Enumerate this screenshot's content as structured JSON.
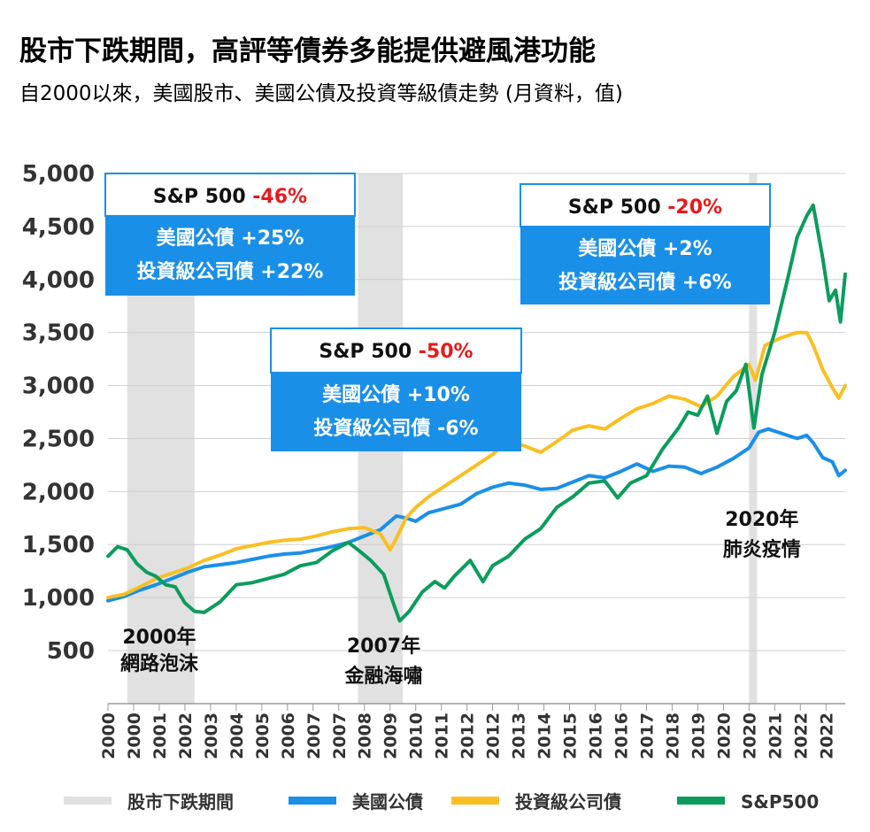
{
  "title": "股市下跌期間，高評等債券多能提供避風港功能",
  "subtitle": "自2000以來，美國股市、美國公債及投資等級債走勢 (月資料，值)",
  "colors": {
    "treasury": "#1a8fe8",
    "ig": "#f9bf22",
    "sp500": "#0b9c5c",
    "shade": "#e1e1e1",
    "box_blue": "#1a8fe8",
    "negative": "#e8191c"
  },
  "chart_data": {
    "type": "line",
    "ylim": [
      0,
      5000
    ],
    "y_ticks": [
      500,
      1000,
      1500,
      2000,
      2500,
      3000,
      3500,
      4000,
      4500,
      5000
    ],
    "y_tick_labels": [
      "500",
      "1,000",
      "1,500",
      "2,000",
      "2,500",
      "3,000",
      "3,500",
      "4,000",
      "4,500",
      "5,000"
    ],
    "x_range": [
      2000.0,
      2023.0
    ],
    "x_ticks": [
      2000.0,
      2000.8,
      2001.6,
      2002.4,
      2003.2,
      2004.0,
      2004.8,
      2005.6,
      2006.4,
      2007.2,
      2008.0,
      2008.8,
      2009.6,
      2010.4,
      2011.2,
      2012.0,
      2012.8,
      2013.6,
      2014.4,
      2015.2,
      2016.0,
      2016.8,
      2017.6,
      2018.4,
      2019.2,
      2020.0,
      2020.8,
      2021.6,
      2022.4
    ],
    "x_tick_labels": [
      "2000",
      "2000",
      "2001",
      "2002",
      "2003",
      "2004",
      "2005",
      "2006",
      "2007",
      "2007",
      "2008",
      "2009",
      "2010",
      "2011",
      "2012",
      "2012",
      "2013",
      "2014",
      "2015",
      "2016",
      "2016",
      "2017",
      "2018",
      "2019",
      "2020",
      "2020",
      "2021",
      "2022",
      "2022"
    ],
    "shaded_periods": [
      {
        "start": 2000.6,
        "end": 2002.7
      },
      {
        "start": 2007.8,
        "end": 2009.2
      },
      {
        "start": 2020.0,
        "end": 2020.25
      }
    ],
    "series": [
      {
        "name": "美國公債",
        "color": "#1a8fe8",
        "x": [
          2000.0,
          2000.5,
          2001.0,
          2001.5,
          2002.0,
          2002.5,
          2003.0,
          2003.5,
          2004.0,
          2004.5,
          2005.0,
          2005.5,
          2006.0,
          2006.5,
          2007.0,
          2007.5,
          2008.0,
          2008.5,
          2009.0,
          2009.3,
          2009.6,
          2010.0,
          2010.5,
          2011.0,
          2011.5,
          2012.0,
          2012.5,
          2013.0,
          2013.5,
          2014.0,
          2014.5,
          2015.0,
          2015.5,
          2016.0,
          2016.5,
          2017.0,
          2017.5,
          2018.0,
          2018.5,
          2019.0,
          2019.5,
          2020.0,
          2020.3,
          2020.6,
          2021.0,
          2021.5,
          2021.8,
          2022.0,
          2022.3,
          2022.6,
          2022.8,
          2023.0
        ],
        "y": [
          970,
          1010,
          1070,
          1120,
          1180,
          1240,
          1290,
          1310,
          1330,
          1360,
          1390,
          1410,
          1420,
          1450,
          1480,
          1520,
          1580,
          1640,
          1770,
          1750,
          1720,
          1800,
          1840,
          1880,
          1980,
          2040,
          2080,
          2060,
          2020,
          2030,
          2090,
          2150,
          2130,
          2190,
          2260,
          2190,
          2240,
          2230,
          2170,
          2230,
          2310,
          2410,
          2560,
          2590,
          2550,
          2500,
          2530,
          2460,
          2320,
          2280,
          2150,
          2200
        ]
      },
      {
        "name": "投資級公司債",
        "color": "#f9bf22",
        "x": [
          2000.0,
          2000.5,
          2001.0,
          2001.5,
          2002.0,
          2002.5,
          2003.0,
          2003.5,
          2004.0,
          2004.5,
          2005.0,
          2005.5,
          2006.0,
          2006.5,
          2007.0,
          2007.5,
          2008.0,
          2008.5,
          2008.8,
          2009.0,
          2009.3,
          2009.6,
          2010.0,
          2010.5,
          2011.0,
          2011.5,
          2012.0,
          2012.5,
          2013.0,
          2013.5,
          2014.0,
          2014.5,
          2015.0,
          2015.5,
          2016.0,
          2016.5,
          2017.0,
          2017.5,
          2018.0,
          2018.5,
          2019.0,
          2019.5,
          2020.0,
          2020.2,
          2020.5,
          2021.0,
          2021.5,
          2021.8,
          2022.0,
          2022.3,
          2022.6,
          2022.8,
          2023.0
        ],
        "y": [
          1000,
          1030,
          1100,
          1180,
          1230,
          1280,
          1350,
          1400,
          1460,
          1490,
          1520,
          1540,
          1550,
          1580,
          1620,
          1650,
          1660,
          1600,
          1450,
          1560,
          1750,
          1850,
          1950,
          2050,
          2150,
          2250,
          2350,
          2480,
          2430,
          2370,
          2470,
          2580,
          2620,
          2590,
          2690,
          2780,
          2830,
          2900,
          2870,
          2800,
          2900,
          3080,
          3200,
          3050,
          3380,
          3450,
          3500,
          3500,
          3380,
          3150,
          2980,
          2880,
          3000
        ]
      },
      {
        "name": "S&P500",
        "color": "#0b9c5c",
        "x": [
          2000.0,
          2000.3,
          2000.6,
          2000.9,
          2001.2,
          2001.5,
          2001.8,
          2002.1,
          2002.4,
          2002.7,
          2003.0,
          2003.5,
          2004.0,
          2004.5,
          2005.0,
          2005.5,
          2006.0,
          2006.5,
          2007.0,
          2007.5,
          2007.8,
          2008.2,
          2008.6,
          2008.9,
          2009.1,
          2009.4,
          2009.8,
          2010.2,
          2010.5,
          2010.8,
          2011.3,
          2011.7,
          2012.0,
          2012.5,
          2013.0,
          2013.5,
          2014.0,
          2014.5,
          2015.0,
          2015.5,
          2015.9,
          2016.3,
          2016.8,
          2017.3,
          2017.8,
          2018.1,
          2018.4,
          2018.7,
          2019.0,
          2019.3,
          2019.6,
          2019.9,
          2020.15,
          2020.4,
          2020.8,
          2021.2,
          2021.5,
          2021.8,
          2022.0,
          2022.3,
          2022.5,
          2022.7,
          2022.85,
          2023.0
        ],
        "y": [
          1390,
          1480,
          1450,
          1320,
          1240,
          1200,
          1120,
          1100,
          950,
          870,
          860,
          960,
          1120,
          1140,
          1180,
          1220,
          1300,
          1330,
          1440,
          1520,
          1450,
          1350,
          1220,
          950,
          780,
          870,
          1050,
          1150,
          1090,
          1200,
          1350,
          1150,
          1300,
          1390,
          1550,
          1650,
          1850,
          1950,
          2080,
          2100,
          1940,
          2080,
          2150,
          2400,
          2600,
          2750,
          2720,
          2900,
          2550,
          2850,
          2950,
          3200,
          2600,
          3100,
          3500,
          4000,
          4400,
          4600,
          4700,
          4200,
          3800,
          3900,
          3600,
          4050
        ]
      }
    ],
    "annotations": [
      {
        "x": 2001.6,
        "lines": [
          "2000年",
          "網路泡沫"
        ]
      },
      {
        "x": 2008.6,
        "lines": [
          "2007年",
          "金融海嘯"
        ]
      },
      {
        "x": 2020.4,
        "lines": [
          "2020年",
          "肺炎疫情"
        ]
      }
    ],
    "boxes": [
      {
        "head_label": "S&P 500",
        "head_value": "-46%",
        "lines": [
          "美國公債  +25%",
          "投資級公司債  +22%"
        ]
      },
      {
        "head_label": "S&P 500",
        "head_value": "-50%",
        "lines": [
          "美國公債  +10%",
          "投資級公司債  -6%"
        ]
      },
      {
        "head_label": "S&P 500",
        "head_value": "-20%",
        "lines": [
          "美國公債  +2%",
          "投資級公司債  +6%"
        ]
      }
    ],
    "legend": {
      "placement": "bottom",
      "items": [
        {
          "label": "股市下跌期間",
          "color": "#e1e1e1"
        },
        {
          "label": "美國公債",
          "color": "#1a8fe8"
        },
        {
          "label": "投資級公司債",
          "color": "#f9bf22"
        },
        {
          "label": "S&P500",
          "color": "#0b9c5c"
        }
      ]
    }
  }
}
